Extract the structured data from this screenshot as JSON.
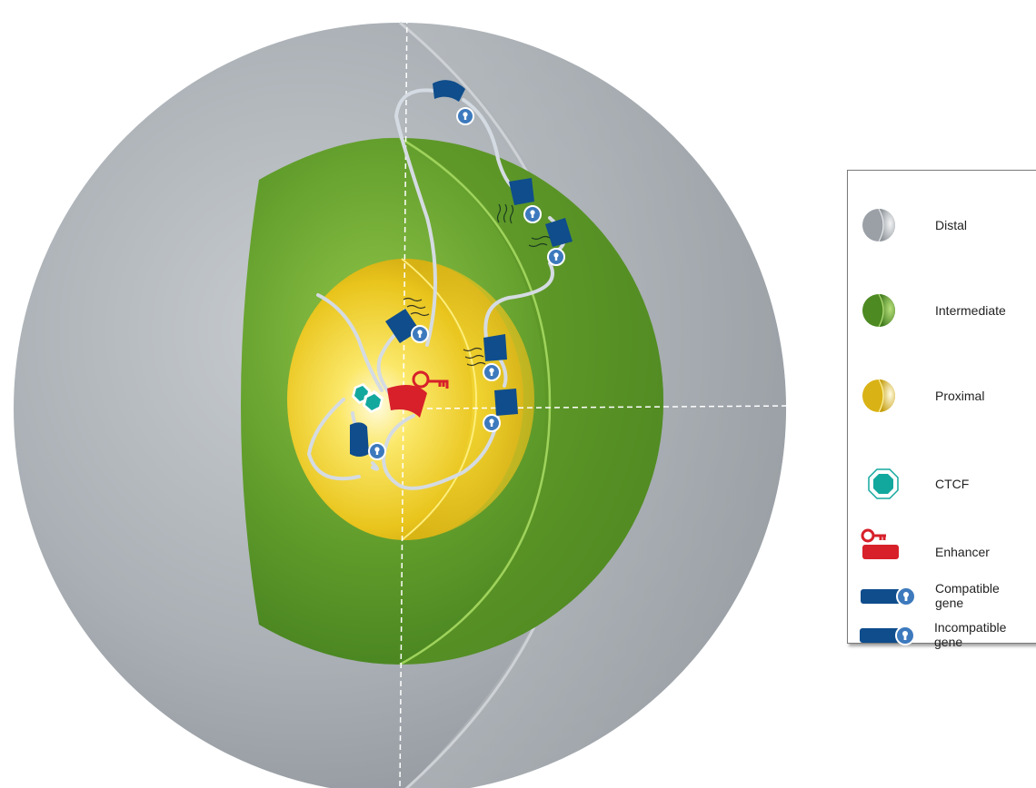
{
  "colors": {
    "distal": "#a9aeb3",
    "intermediate": "#5f9b2a",
    "proximal": "#f0d128",
    "ctcf": "#13a89e",
    "enhancer": "#d7202a",
    "gene": "#0f4d8c",
    "key_hole": "#3d79bd",
    "chromatin": "#d5dbe2"
  },
  "legend": {
    "items": [
      {
        "name": "distal",
        "label": "Distal",
        "icon": "gray-hemisphere-icon"
      },
      {
        "name": "intermediate",
        "label": "Intermediate",
        "icon": "green-hemisphere-icon"
      },
      {
        "name": "proximal",
        "label": "Proximal",
        "icon": "yellow-hemisphere-icon"
      },
      {
        "name": "ctcf",
        "label": "CTCF",
        "icon": "ctcf-octagon-icon"
      },
      {
        "name": "enhancer",
        "label": "Enhancer",
        "icon": "enhancer-key-icon"
      },
      {
        "name": "compatible",
        "label": "Compatible\ngene",
        "icon": "compatible-gene-icon"
      },
      {
        "name": "incompatible",
        "label": "Incompatible\ngene",
        "icon": "incompatible-gene-icon"
      }
    ]
  }
}
